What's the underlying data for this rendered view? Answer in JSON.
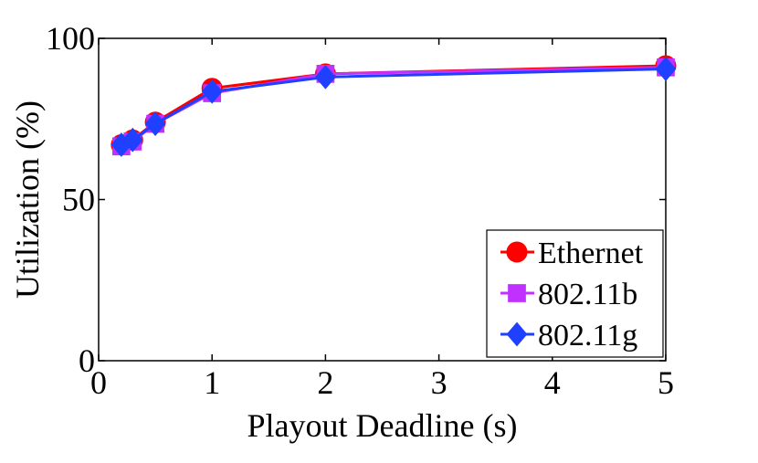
{
  "chart_data": {
    "type": "line",
    "title": "",
    "xlabel": "Playout Deadline (s)",
    "ylabel": "Utilization (%)",
    "xlim": [
      0,
      5
    ],
    "ylim": [
      0,
      100
    ],
    "xticks": [
      0,
      1,
      2,
      3,
      4,
      5
    ],
    "yticks": [
      0,
      50,
      100
    ],
    "grid": false,
    "legend": "bottom-right",
    "series": [
      {
        "name": "Ethernet",
        "color": "#ff0000",
        "marker": "circle",
        "x": [
          0.2,
          0.3,
          0.5,
          1,
          2,
          5
        ],
        "y": [
          67,
          68.5,
          74,
          84.5,
          89,
          91.5
        ]
      },
      {
        "name": "802.11b",
        "color": "#c030ff",
        "marker": "square",
        "x": [
          0.2,
          0.3,
          0.5,
          1,
          2,
          5
        ],
        "y": [
          66.5,
          68,
          73.5,
          83,
          89,
          91
        ]
      },
      {
        "name": "802.11g",
        "color": "#2040ff",
        "marker": "diamond",
        "x": [
          0.2,
          0.3,
          0.5,
          1,
          2,
          5
        ],
        "y": [
          67,
          68.5,
          73.5,
          83.5,
          88,
          90.5
        ]
      }
    ]
  }
}
